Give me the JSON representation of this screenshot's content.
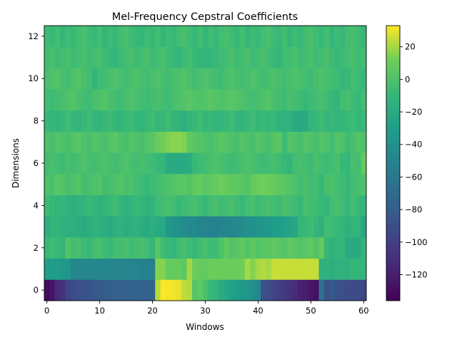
{
  "chart_data": {
    "type": "heatmap",
    "title": "Mel-Frequency Cepstral Coefficients",
    "xlabel": "Windows",
    "ylabel": "Dimensions",
    "n_windows": 61,
    "n_dimensions": 13,
    "x_ticks": [
      0,
      10,
      20,
      30,
      40,
      50,
      60
    ],
    "y_ticks": [
      0,
      2,
      4,
      6,
      8,
      10,
      12
    ],
    "colorbar": {
      "colormap": "viridis",
      "min": -136,
      "max": 33,
      "ticks": [
        -120,
        -100,
        -80,
        -60,
        -40,
        -20,
        0,
        20
      ],
      "tick_labels": [
        "−120",
        "−100",
        "−80",
        "−60",
        "−40",
        "−20",
        "0",
        "20"
      ]
    },
    "rows": [
      [
        -130,
        -125,
        -112,
        -108,
        -96,
        -92,
        -90,
        -88,
        -86,
        -84,
        -82,
        -80,
        -78,
        -78,
        -78,
        -76,
        -76,
        -76,
        -76,
        -76,
        -76,
        23,
        33,
        32,
        31,
        30,
        24,
        22,
        3,
        6,
        -1,
        -8,
        -12,
        -20,
        -24,
        -28,
        -30,
        -34,
        -36,
        -42,
        -48,
        -88,
        -92,
        -96,
        -100,
        -104,
        -108,
        -112,
        -118,
        -120,
        -124,
        -128,
        -66,
        -88,
        -82,
        -88,
        -90,
        -92,
        -92,
        -92,
        -96
      ],
      [
        -30,
        -30,
        -32,
        -34,
        -36,
        -48,
        -48,
        -48,
        -48,
        -48,
        -48,
        -48,
        -48,
        -48,
        -50,
        -50,
        -50,
        -50,
        -52,
        -52,
        -52,
        15,
        15,
        8,
        8,
        8,
        5,
        20,
        10,
        8,
        8,
        10,
        10,
        10,
        10,
        10,
        10,
        12,
        20,
        15,
        20,
        22,
        20,
        25,
        25,
        25,
        25,
        25,
        25,
        25,
        25,
        25,
        -14,
        -14,
        -16,
        -14,
        -14,
        -14,
        -10,
        -10,
        -10
      ],
      [
        -8,
        -6,
        -8,
        -10,
        2,
        -4,
        -2,
        -6,
        -8,
        -4,
        -2,
        -6,
        -8,
        -4,
        -4,
        -2,
        -6,
        -4,
        -2,
        -6,
        -10,
        4,
        -6,
        -8,
        -10,
        -6,
        -2,
        -6,
        -8,
        -6,
        -2,
        -6,
        -6,
        0,
        6,
        2,
        4,
        6,
        2,
        6,
        2,
        4,
        4,
        6,
        4,
        2,
        6,
        4,
        2,
        4,
        6,
        2,
        8,
        -8,
        -14,
        -10,
        -10,
        -20,
        -20,
        -20,
        -12
      ],
      [
        -16,
        -12,
        -10,
        -14,
        -16,
        -16,
        -18,
        -20,
        -18,
        -14,
        -16,
        -18,
        -20,
        -16,
        -14,
        -18,
        -16,
        -14,
        -18,
        -20,
        -16,
        -20,
        -22,
        -34,
        -38,
        -40,
        -44,
        -46,
        -46,
        -50,
        -50,
        -52,
        -52,
        -50,
        -48,
        -48,
        -46,
        -44,
        -40,
        -40,
        -38,
        -36,
        -34,
        -32,
        -30,
        -28,
        -26,
        -24,
        -10,
        -8,
        -6,
        -10,
        -14,
        -4,
        -6,
        -8,
        -10,
        -16,
        -12,
        -12,
        -22
      ],
      [
        -6,
        -8,
        -12,
        -10,
        -14,
        -16,
        -14,
        -12,
        -8,
        -10,
        -14,
        -12,
        -8,
        -6,
        -10,
        -14,
        -12,
        -8,
        -10,
        -14,
        -12,
        -6,
        -4,
        -2,
        -4,
        -8,
        -6,
        -4,
        -2,
        -6,
        -8,
        -4,
        -2,
        -6,
        -4,
        -2,
        -6,
        -8,
        -4,
        -2,
        -6,
        -4,
        -2,
        -4,
        -6,
        -2,
        -4,
        -6,
        -8,
        -2,
        -4,
        -6,
        -8,
        -10,
        -4,
        -2,
        -6,
        -10,
        -4,
        -8,
        -12
      ],
      [
        0,
        -2,
        4,
        2,
        -2,
        0,
        2,
        -4,
        -2,
        0,
        2,
        -4,
        -2,
        0,
        2,
        -2,
        0,
        -4,
        -6,
        -8,
        -6,
        -4,
        -2,
        0,
        2,
        4,
        4,
        2,
        6,
        8,
        4,
        6,
        8,
        10,
        8,
        6,
        6,
        4,
        2,
        8,
        10,
        12,
        10,
        8,
        6,
        4,
        2,
        0,
        -4,
        -2,
        -6,
        -4,
        -8,
        -2,
        0,
        -4,
        -6,
        -8,
        -4,
        -2,
        0
      ],
      [
        -4,
        -2,
        -4,
        -6,
        -2,
        -4,
        -2,
        0,
        -2,
        -4,
        -2,
        0,
        -2,
        -4,
        -2,
        0,
        -2,
        -4,
        -2,
        -4,
        -6,
        -8,
        -10,
        -20,
        -20,
        -22,
        -20,
        -18,
        -8,
        -6,
        -4,
        -2,
        0,
        -2,
        -4,
        -6,
        -4,
        -2,
        0,
        -2,
        -4,
        -6,
        -4,
        -2,
        -6,
        -8,
        -12,
        -4,
        -2,
        -4,
        -6,
        -2,
        -4,
        -6,
        -4,
        -2,
        -8,
        -10,
        -2,
        -4,
        8
      ],
      [
        0,
        -2,
        2,
        0,
        -2,
        2,
        4,
        0,
        -2,
        2,
        0,
        -2,
        2,
        4,
        0,
        -2,
        2,
        0,
        -2,
        2,
        4,
        10,
        12,
        14,
        16,
        16,
        14,
        6,
        4,
        2,
        0,
        -2,
        2,
        4,
        2,
        0,
        -2,
        2,
        0,
        -2,
        2,
        0,
        -2,
        2,
        4,
        -6,
        2,
        0,
        -2,
        2,
        0,
        -2,
        2,
        0,
        -4,
        2,
        0,
        -6,
        -2,
        2,
        0
      ],
      [
        -8,
        -10,
        -12,
        -8,
        -6,
        -10,
        -12,
        -8,
        -6,
        -10,
        -12,
        -8,
        -6,
        -10,
        -12,
        -8,
        -6,
        -10,
        -12,
        -8,
        -6,
        -10,
        -8,
        -6,
        -10,
        -12,
        -16,
        -10,
        -8,
        -6,
        -10,
        -8,
        -12,
        -10,
        -8,
        -6,
        -10,
        -12,
        -8,
        -6,
        -10,
        -8,
        -10,
        -8,
        -14,
        -14,
        -14,
        -20,
        -20,
        -20,
        -10,
        -8,
        -6,
        -10,
        -8,
        -12,
        -10,
        -8,
        -6,
        -10,
        -8
      ],
      [
        -4,
        -6,
        -4,
        -2,
        0,
        2,
        -2,
        -4,
        -6,
        -2,
        0,
        2,
        -2,
        -4,
        -6,
        -2,
        0,
        -2,
        -4,
        -6,
        -4,
        -2,
        -4,
        -6,
        -2,
        0,
        2,
        4,
        2,
        0,
        2,
        4,
        2,
        0,
        2,
        4,
        2,
        0,
        -2,
        -4,
        -2,
        0,
        2,
        -2,
        -4,
        -6,
        -2,
        -4,
        -6,
        -8,
        -6,
        -4,
        -2,
        -6,
        -8,
        -10,
        -4,
        -2,
        -6,
        -8,
        -4
      ],
      [
        -2,
        0,
        2,
        -2,
        -4,
        0,
        2,
        -2,
        -4,
        -10,
        -6,
        -4,
        -2,
        0,
        -2,
        -4,
        -2,
        0,
        -2,
        -4,
        -2,
        0,
        -2,
        -4,
        -2,
        0,
        2,
        -2,
        -4,
        -2,
        0,
        -2,
        -4,
        -6,
        -2,
        0,
        -2,
        -4,
        -2,
        0,
        -2,
        -4,
        -2,
        0,
        -2,
        -4,
        -2,
        0,
        -2,
        -4,
        -6,
        -2,
        0,
        -2,
        -4,
        -6,
        -10,
        -8,
        -4,
        -6,
        -8
      ],
      [
        -4,
        -2,
        -6,
        -4,
        -2,
        -6,
        -4,
        -2,
        -6,
        -4,
        -2,
        -6,
        -8,
        -10,
        -6,
        -4,
        -2,
        -6,
        -4,
        -2,
        -6,
        -4,
        -2,
        -6,
        -8,
        -10,
        -6,
        -4,
        -8,
        -10,
        -12,
        -10,
        -8,
        -6,
        -4,
        -2,
        -6,
        -4,
        -2,
        -6,
        -4,
        -2,
        -6,
        -8,
        -10,
        -6,
        -4,
        -2,
        -6,
        -4,
        -2,
        -6,
        -4,
        -2,
        -6,
        -8,
        -6,
        -4,
        -2,
        -6,
        -4
      ],
      [
        -6,
        -8,
        -4,
        -10,
        -6,
        -8,
        -4,
        -2,
        -6,
        -8,
        -4,
        -10,
        -6,
        -8,
        -4,
        -2,
        -6,
        -8,
        -10,
        -6,
        -8,
        -4,
        -10,
        -6,
        -8,
        -4,
        -2,
        -6,
        -8,
        -4,
        -10,
        -6,
        -8,
        -4,
        -2,
        -6,
        -8,
        -4,
        -10,
        -6,
        -8,
        -4,
        -2,
        -6,
        -8,
        -4,
        -10,
        -6,
        -8,
        -4,
        -2,
        -6,
        -8,
        -4,
        -10,
        -6,
        -8,
        -4,
        -2,
        -6,
        -8
      ]
    ]
  }
}
